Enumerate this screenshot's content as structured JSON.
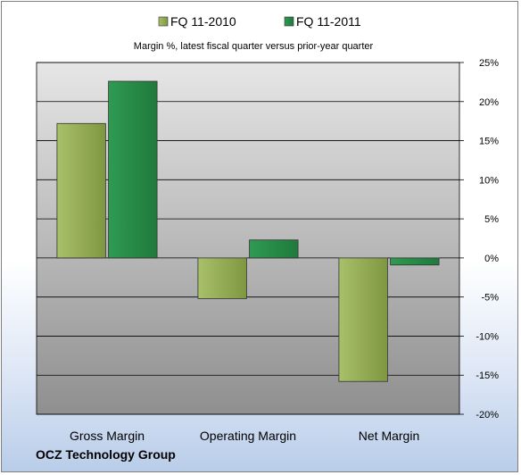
{
  "chart_data": {
    "type": "bar",
    "title": "Margin %,  latest fiscal quarter versus prior-year quarter",
    "categories": [
      "Gross Margin",
      "Operating Margin",
      "Net Margin"
    ],
    "series": [
      {
        "name": "FQ 11-2010",
        "values": [
          17.2,
          -5.2,
          -15.8
        ],
        "color": "#8ea54c"
      },
      {
        "name": "FQ 11-2011",
        "values": [
          22.6,
          2.3,
          -0.9
        ],
        "color": "#2e8a4a"
      }
    ],
    "ylim": [
      -20,
      25
    ],
    "yticks": [
      25,
      20,
      15,
      10,
      5,
      0,
      -5,
      -10,
      -15,
      -20
    ],
    "ytick_labels": [
      "25%",
      "20%",
      "15%",
      "10%",
      "5%",
      "0%",
      "-5%",
      "-10%",
      "-15%",
      "-20%"
    ],
    "y_axis_side": "right",
    "grid": true,
    "legend_position": "top",
    "xlabel": "",
    "ylabel": ""
  },
  "footer": {
    "company": "OCZ Technology Group"
  },
  "colors": {
    "plot_top": "#e6e6e6",
    "plot_bottom": "#8f8f8f",
    "gridline": "#000000"
  }
}
